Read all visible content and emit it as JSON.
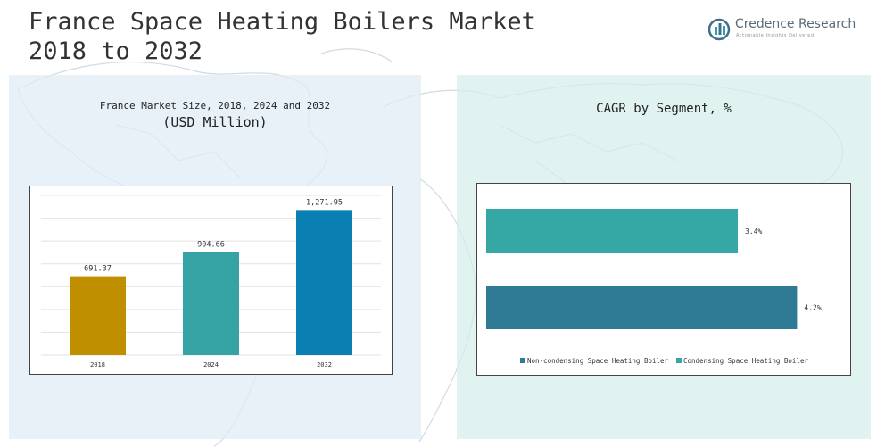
{
  "header": {
    "title_line1": "France Space Heating Boilers Market",
    "title_line2": "2018 to 2032"
  },
  "brand": {
    "name": "Credence Research",
    "tagline": "Actionable Insights Delivered",
    "color": "#5a6b78"
  },
  "left_panel": {
    "title": "France Market Size, 2018, 2024 and 2032",
    "subtitle": "(USD Million)"
  },
  "right_panel": {
    "title": "CAGR by Segment, %"
  },
  "chart_data": [
    {
      "type": "bar",
      "title": "France Market Size, 2018, 2024 and 2032",
      "subtitle": "(USD Million)",
      "categories": [
        "2018",
        "2024",
        "2032"
      ],
      "values": [
        691.37,
        904.66,
        1271.95
      ],
      "value_labels": [
        "691.37",
        "904.66",
        "1,271.95"
      ],
      "colors": [
        "#c08f00",
        "#35a3a3",
        "#0a7fb2"
      ],
      "ylim": [
        0,
        1400
      ],
      "grid": true,
      "xlabel": "",
      "ylabel": ""
    },
    {
      "type": "bar",
      "orientation": "horizontal",
      "title": "CAGR by Segment, %",
      "series": [
        {
          "name": "Non-condensing Space Heating Boiler",
          "value": 4.2,
          "label": "4.2%",
          "color": "#2f7b96"
        },
        {
          "name": "Condensing Space Heating Boiler",
          "value": 3.4,
          "label": "3.4%",
          "color": "#35a8a5"
        }
      ],
      "xlim": [
        0,
        4.4
      ],
      "legend": "bottom",
      "grid": false
    }
  ]
}
